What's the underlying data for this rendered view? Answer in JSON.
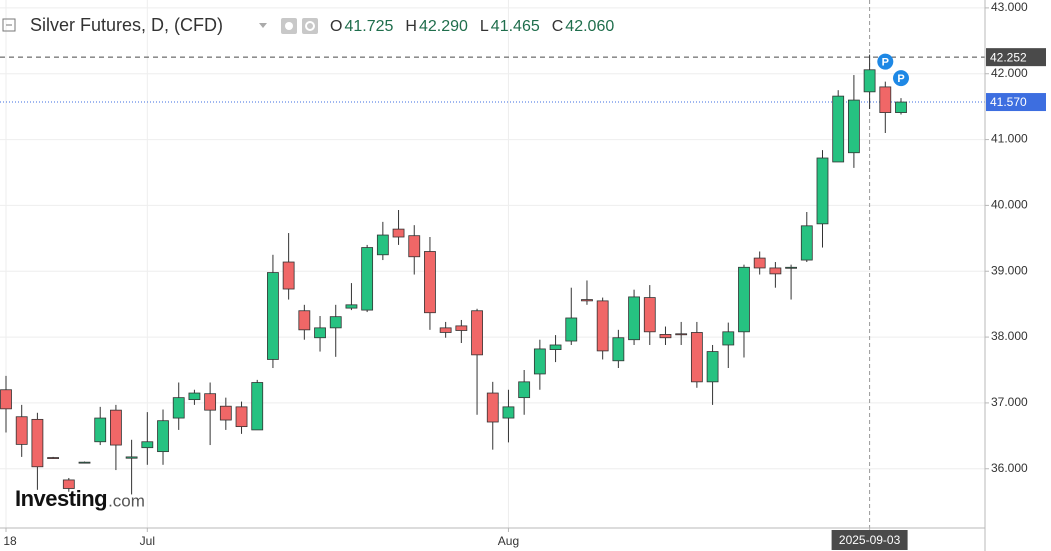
{
  "chart_data": {
    "type": "candlestick",
    "title": "Silver Futures, D, (CFD)",
    "legend": [
      {
        "key": "O",
        "text": "41.725"
      },
      {
        "key": "H",
        "text": "42.290"
      },
      {
        "key": "L",
        "text": "41.465"
      },
      {
        "key": "C",
        "text": "42.060"
      }
    ],
    "categories": [
      "18",
      null,
      null,
      null,
      null,
      null,
      null,
      null,
      null,
      "Jul",
      null,
      null,
      null,
      null,
      null,
      null,
      null,
      null,
      null,
      null,
      null,
      null,
      null,
      null,
      null,
      null,
      null,
      null,
      null,
      null,
      null,
      null,
      "Aug",
      null,
      null,
      null,
      null,
      null,
      null,
      null,
      null,
      null,
      null,
      null,
      null,
      null,
      null,
      null,
      null,
      null,
      null,
      null,
      null,
      null,
      null,
      "2025-09-03",
      null,
      null
    ],
    "highlight_category": 55,
    "open": [
      37.2,
      36.79,
      36.75,
      36.17,
      35.83,
      36.09,
      36.41,
      36.89,
      36.16,
      36.32,
      36.26,
      36.77,
      37.05,
      37.14,
      36.95,
      36.94,
      36.59,
      37.66,
      39.14,
      38.4,
      37.99,
      38.14,
      38.44,
      38.41,
      39.25,
      39.64,
      39.54,
      39.3,
      38.14,
      38.17,
      38.4,
      37.15,
      36.77,
      37.08,
      37.44,
      37.81,
      37.94,
      38.57,
      38.55,
      37.64,
      37.96,
      38.6,
      38.04,
      38.05,
      38.07,
      37.32,
      37.88,
      38.08,
      39.2,
      39.05,
      39.05,
      39.17,
      39.72,
      40.66,
      40.8,
      41.725,
      41.8,
      41.41
    ],
    "high": [
      37.41,
      36.97,
      36.85,
      36.18,
      35.86,
      36.11,
      36.94,
      36.97,
      36.44,
      36.86,
      36.9,
      37.31,
      37.2,
      37.31,
      37.08,
      37.02,
      37.35,
      39.25,
      39.58,
      38.49,
      38.32,
      38.49,
      38.82,
      39.4,
      39.75,
      39.93,
      39.7,
      39.52,
      38.23,
      38.26,
      38.43,
      37.32,
      37.2,
      37.5,
      37.96,
      38.03,
      38.75,
      38.86,
      38.6,
      38.11,
      38.72,
      38.79,
      38.16,
      38.23,
      38.23,
      37.88,
      38.22,
      39.1,
      39.3,
      39.14,
      39.1,
      39.9,
      40.84,
      41.75,
      41.98,
      42.29,
      41.88,
      41.63
    ],
    "low": [
      36.55,
      36.18,
      35.68,
      36.15,
      35.65,
      36.08,
      36.36,
      35.98,
      35.61,
      36.06,
      36.06,
      36.59,
      36.97,
      36.36,
      36.59,
      36.53,
      36.59,
      37.53,
      38.57,
      37.96,
      37.78,
      37.7,
      38.41,
      38.38,
      39.17,
      39.4,
      38.95,
      38.11,
      37.99,
      37.91,
      36.82,
      36.29,
      36.4,
      36.82,
      37.2,
      37.62,
      37.88,
      38.49,
      37.66,
      37.53,
      37.88,
      37.88,
      37.88,
      37.88,
      37.23,
      36.97,
      37.53,
      37.69,
      38.95,
      38.75,
      38.57,
      39.14,
      39.36,
      40.66,
      40.57,
      41.465,
      41.1,
      41.38
    ],
    "close": [
      36.91,
      36.37,
      36.03,
      36.16,
      35.7,
      36.1,
      36.77,
      36.36,
      36.18,
      36.41,
      36.73,
      37.08,
      37.15,
      36.89,
      36.74,
      36.64,
      37.31,
      38.98,
      38.73,
      38.11,
      38.14,
      38.31,
      38.49,
      39.36,
      39.55,
      39.52,
      39.22,
      38.37,
      38.07,
      38.1,
      37.73,
      36.71,
      36.94,
      37.32,
      37.82,
      37.88,
      38.29,
      38.55,
      37.79,
      37.99,
      38.61,
      38.08,
      37.99,
      38.04,
      37.32,
      37.78,
      38.08,
      39.06,
      39.05,
      38.96,
      39.06,
      39.69,
      40.72,
      41.66,
      41.6,
      42.06,
      41.41,
      41.57
    ],
    "up_color": "#26c281",
    "down_color": "#f06767",
    "outline_color": "#333333",
    "ylim": [
      35.1,
      43.12
    ],
    "yticks": [
      {
        "value": 36,
        "label": "36.000"
      },
      {
        "value": 37,
        "label": "37.000"
      },
      {
        "value": 38,
        "label": "38.000"
      },
      {
        "value": 39,
        "label": "39.000"
      },
      {
        "value": 40,
        "label": "40.000"
      },
      {
        "value": 41,
        "label": "41.000"
      },
      {
        "value": 42,
        "label": "42.000"
      },
      {
        "value": 43,
        "label": "43.000"
      }
    ],
    "grid": true,
    "price_lines": [
      {
        "value": 42.252,
        "label": "42.252",
        "color": "#4a4a4a",
        "style": "dashed"
      },
      {
        "value": 41.57,
        "label": "41.570",
        "color": "#3d6ee0",
        "style": "dotted"
      }
    ],
    "markers": [
      {
        "at": 56,
        "text": "P",
        "color": "#1e88e5"
      },
      {
        "at": 57,
        "text": "P",
        "color": "#1e88e5"
      }
    ],
    "watermark": [
      "Investing",
      ".com"
    ]
  }
}
